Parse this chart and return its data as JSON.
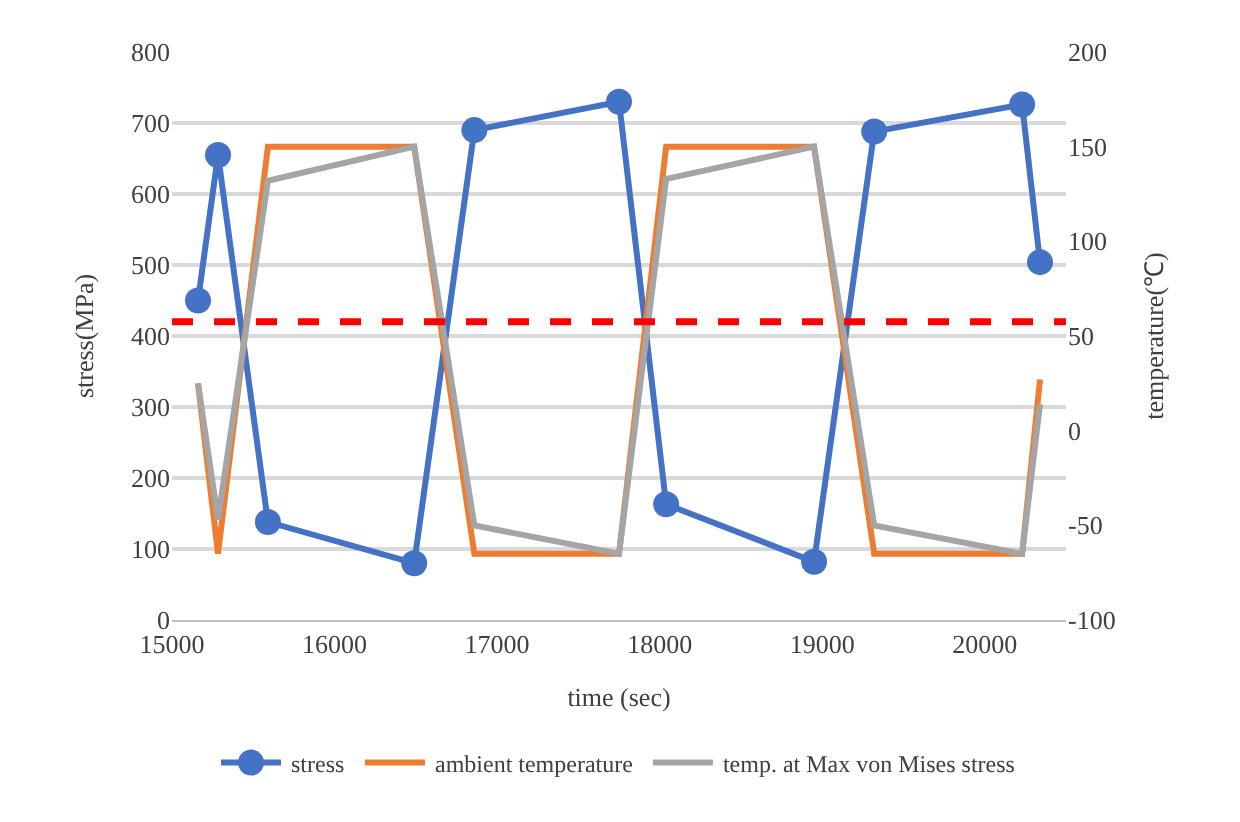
{
  "chart_data": {
    "type": "line",
    "xlabel": "time (sec)",
    "ylabel": "stress(MPa)",
    "y2label": "temperature(℃)",
    "x": [
      15160,
      15283,
      15590,
      16490,
      16860,
      17750,
      18040,
      18950,
      19320,
      20230,
      20340
    ],
    "series": [
      {
        "name": "stress",
        "color": "#4472c4",
        "marker": "circle",
        "values": [
          450,
          655,
          138,
          80,
          690,
          730,
          163,
          82,
          688,
          726,
          504
        ]
      },
      {
        "name": "ambient temperature",
        "color": "#ed7d31",
        "axis": "y2",
        "marker": "none",
        "values": [
          25,
          -65,
          150,
          150,
          -65,
          -65,
          150,
          150,
          -65,
          -65,
          27
        ]
      },
      {
        "name": "temp. at Max von Mises stress",
        "color": "#a5a5a5",
        "axis": "y2",
        "marker": "none",
        "values": [
          25,
          -47,
          132,
          150,
          -50,
          -65,
          133,
          150,
          -50,
          -65,
          14
        ]
      }
    ],
    "xlim": [
      15000,
      20500
    ],
    "xticks": [
      15000,
      16000,
      17000,
      18000,
      19000,
      20000
    ],
    "ylim": [
      0,
      800
    ],
    "yticks": [
      0,
      100,
      200,
      300,
      400,
      500,
      600,
      700,
      800
    ],
    "y2lim": [
      -100,
      200
    ],
    "y2ticks": [
      -100,
      -50,
      0,
      50,
      100,
      150,
      200
    ],
    "ref_lines": [
      {
        "axis": "y",
        "value": 420,
        "color": "#ff0000",
        "line_style": "dashed"
      }
    ],
    "grid": "y",
    "legend": "bottom"
  }
}
